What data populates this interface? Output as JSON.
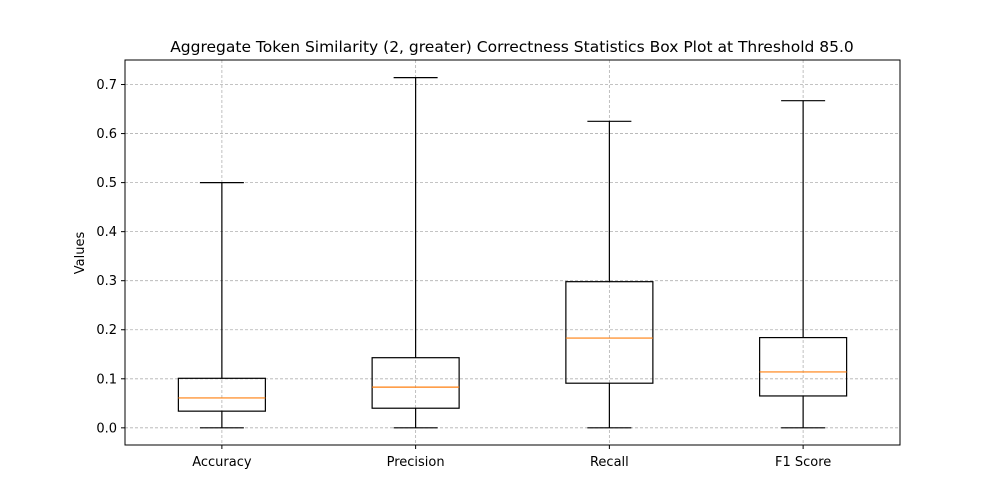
{
  "chart_data": {
    "type": "box",
    "title": "Aggregate Token Similarity (2, greater) Correctness Statistics Box Plot at Threshold 85.0",
    "xlabel": "",
    "ylabel": "Values",
    "ylim": [
      -0.035,
      0.75
    ],
    "yticks": [
      0.0,
      0.1,
      0.2,
      0.3,
      0.4,
      0.5,
      0.6,
      0.7
    ],
    "ytick_labels": [
      "0.0",
      "0.1",
      "0.2",
      "0.3",
      "0.4",
      "0.5",
      "0.6",
      "0.7"
    ],
    "grid": true,
    "categories": [
      "Accuracy",
      "Precision",
      "Recall",
      "F1 Score"
    ],
    "boxes": [
      {
        "label": "Accuracy",
        "whisker_low": 0.0,
        "q1": 0.034,
        "median": 0.061,
        "q3": 0.101,
        "whisker_high": 0.5
      },
      {
        "label": "Precision",
        "whisker_low": 0.0,
        "q1": 0.04,
        "median": 0.083,
        "q3": 0.143,
        "whisker_high": 0.714
      },
      {
        "label": "Recall",
        "whisker_low": 0.0,
        "q1": 0.091,
        "median": 0.183,
        "q3": 0.298,
        "whisker_high": 0.625
      },
      {
        "label": "F1 Score",
        "whisker_low": 0.0,
        "q1": 0.065,
        "median": 0.114,
        "q3": 0.184,
        "whisker_high": 0.667
      }
    ],
    "colors": {
      "box": "#000000",
      "median": "#ff7f0e",
      "grid": "#b0b0b0"
    }
  }
}
